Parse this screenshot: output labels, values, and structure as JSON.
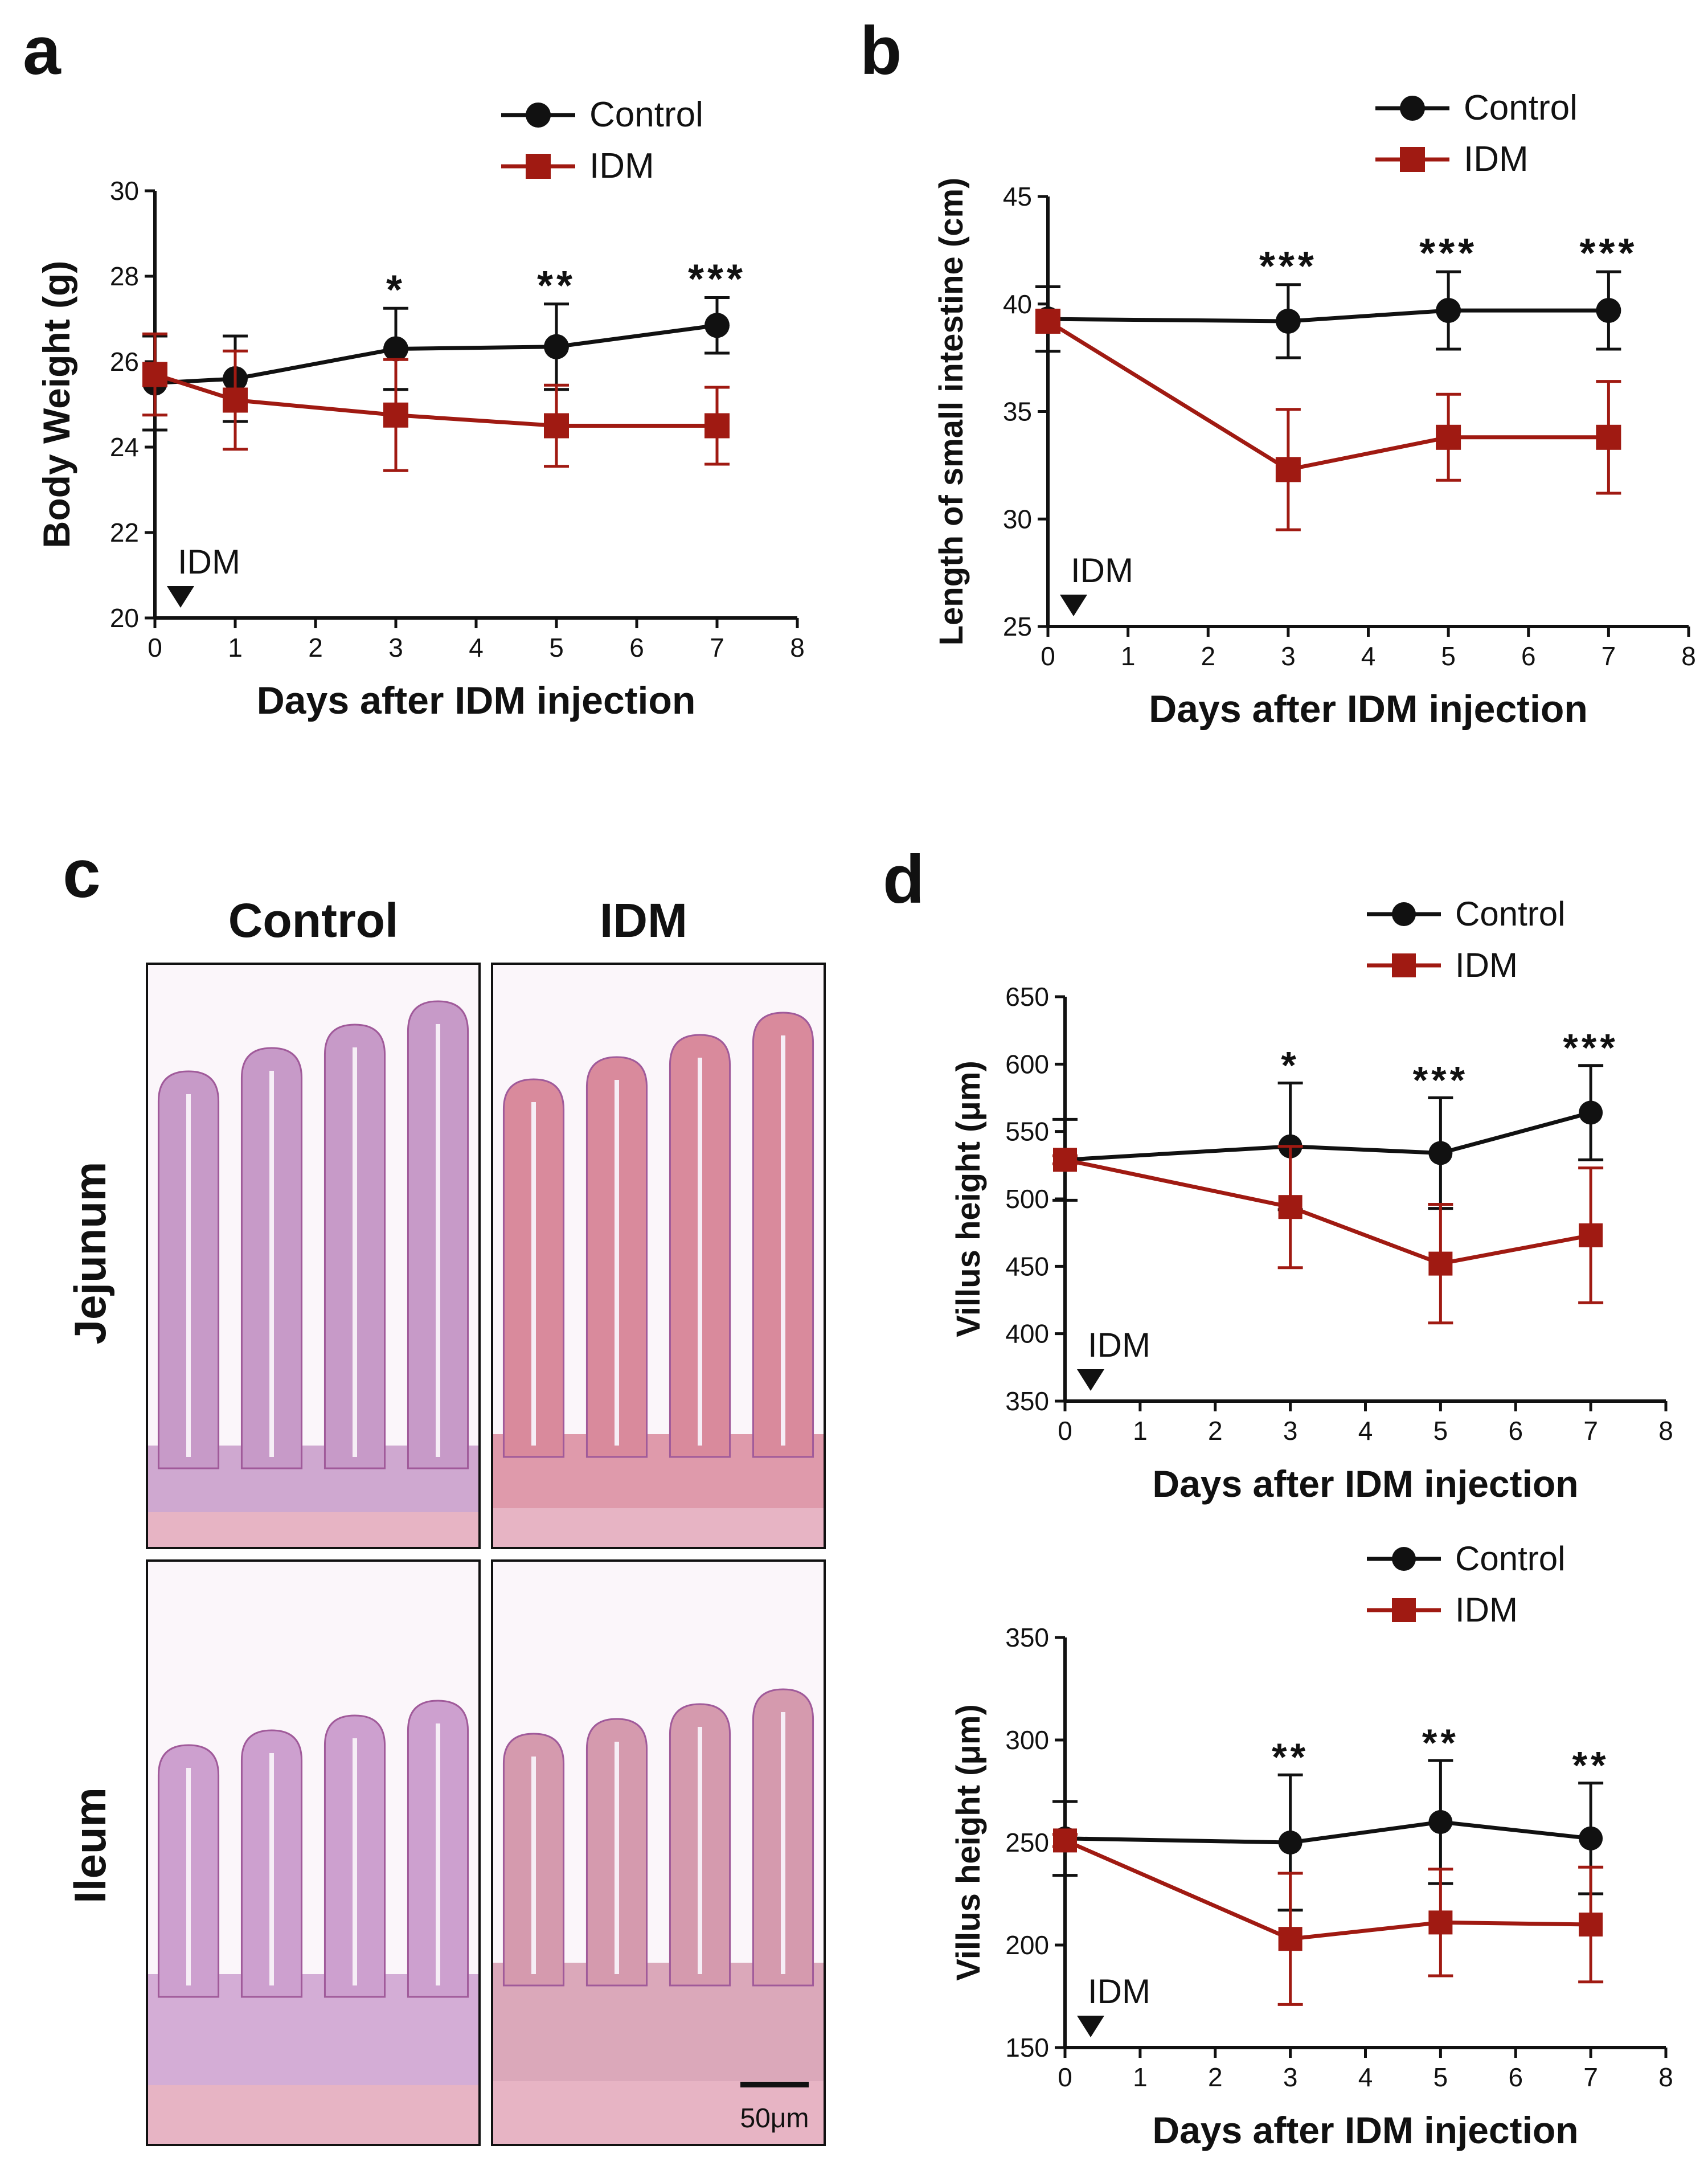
{
  "panels": {
    "a": "a",
    "b": "b",
    "c": "c",
    "d": "d"
  },
  "colors": {
    "control": "#111111",
    "idm": "#a01a12",
    "axis": "#111111"
  },
  "histology": {
    "columns": [
      "Control",
      "IDM"
    ],
    "rows": [
      "Jejunum",
      "Ileum"
    ],
    "scale_bar": "50μm",
    "stain_colors": {
      "control_jejunum": "#c79ac8",
      "idm_jejunum": "#d98a9c",
      "control_ileum": "#cda0cf",
      "idm_ileum": "#d59aae",
      "background": "#fbf6fa"
    }
  },
  "chart_data": [
    {
      "panel": "a",
      "type": "line",
      "title": "",
      "xlabel": "Days after IDM injection",
      "ylabel": "Body Weight (g)",
      "xlim": [
        0,
        8
      ],
      "ylim": [
        20,
        30
      ],
      "xticks": [
        0,
        1,
        2,
        3,
        4,
        5,
        6,
        7,
        8
      ],
      "yticks": [
        20,
        22,
        24,
        26,
        28,
        30
      ],
      "annotation": "IDM",
      "legend": "top-right",
      "series": [
        {
          "name": "Control",
          "x": [
            0,
            1,
            3,
            5,
            7
          ],
          "values": [
            25.5,
            25.6,
            26.3,
            26.35,
            26.85
          ],
          "err": [
            1.1,
            1.0,
            0.95,
            1.0,
            0.65
          ]
        },
        {
          "name": "IDM",
          "x": [
            0,
            1,
            3,
            5,
            7
          ],
          "values": [
            25.7,
            25.1,
            24.75,
            24.5,
            24.5
          ],
          "err": [
            0.95,
            1.15,
            1.3,
            0.95,
            0.9
          ]
        }
      ],
      "significance": [
        {
          "x": 3,
          "label": "*"
        },
        {
          "x": 5,
          "label": "**"
        },
        {
          "x": 7,
          "label": "***"
        }
      ]
    },
    {
      "panel": "b",
      "type": "line",
      "title": "",
      "xlabel": "Days after IDM injection",
      "ylabel": "Length of small intestine (cm)",
      "xlim": [
        0,
        8
      ],
      "ylim": [
        25,
        45
      ],
      "xticks": [
        0,
        1,
        2,
        3,
        4,
        5,
        6,
        7,
        8
      ],
      "yticks": [
        25,
        30,
        35,
        40,
        45
      ],
      "annotation": "IDM",
      "legend": "top-right",
      "series": [
        {
          "name": "Control",
          "x": [
            0,
            3,
            7,
            5
          ],
          "values": [
            39.3,
            39.2,
            39.7,
            39.7
          ],
          "err": [
            1.5,
            1.7,
            1.8,
            1.8
          ]
        },
        {
          "name": "IDM",
          "x": [
            0,
            3,
            5,
            7
          ],
          "values": [
            39.2,
            32.3,
            33.8,
            33.8
          ],
          "err": [
            0.5,
            2.8,
            2.0,
            2.6
          ]
        }
      ],
      "significance": [
        {
          "x": 3,
          "label": "***"
        },
        {
          "x": 5,
          "label": "***"
        },
        {
          "x": 7,
          "label": "***"
        }
      ]
    },
    {
      "panel": "d-top",
      "type": "line",
      "title": "",
      "xlabel": "Days after IDM injection",
      "ylabel": "Villus height (μm)",
      "xlim": [
        0,
        8
      ],
      "ylim": [
        350,
        650
      ],
      "xticks": [
        0,
        1,
        2,
        3,
        4,
        5,
        6,
        7,
        8
      ],
      "yticks": [
        350,
        400,
        450,
        500,
        550,
        600,
        650
      ],
      "annotation": "IDM",
      "legend": "top-right",
      "series": [
        {
          "name": "Control",
          "x": [
            0,
            3,
            5,
            7
          ],
          "values": [
            529,
            539,
            534,
            564
          ],
          "err": [
            30,
            47,
            41,
            35
          ]
        },
        {
          "name": "IDM",
          "x": [
            0,
            3,
            5,
            7
          ],
          "values": [
            529,
            494,
            452,
            473
          ],
          "err": [
            3,
            45,
            44,
            50
          ]
        }
      ],
      "significance": [
        {
          "x": 3,
          "label": "*"
        },
        {
          "x": 5,
          "label": "***"
        },
        {
          "x": 7,
          "label": "***"
        }
      ]
    },
    {
      "panel": "d-bottom",
      "type": "line",
      "title": "",
      "xlabel": "Days after IDM injection",
      "ylabel": "Villus height (μm)",
      "xlim": [
        0,
        8
      ],
      "ylim": [
        150,
        350
      ],
      "xticks": [
        0,
        1,
        2,
        3,
        4,
        5,
        6,
        7,
        8
      ],
      "yticks": [
        150,
        200,
        250,
        300,
        350
      ],
      "annotation": "IDM",
      "legend": "top-right",
      "series": [
        {
          "name": "Control",
          "x": [
            0,
            3,
            5,
            7
          ],
          "values": [
            252,
            250,
            260,
            252
          ],
          "err": [
            18,
            33,
            30,
            27
          ]
        },
        {
          "name": "IDM",
          "x": [
            0,
            3,
            5,
            7
          ],
          "values": [
            251,
            203,
            211,
            210
          ],
          "err": [
            3,
            32,
            26,
            28
          ]
        }
      ],
      "significance": [
        {
          "x": 3,
          "label": "**"
        },
        {
          "x": 5,
          "label": "**"
        },
        {
          "x": 7,
          "label": "**"
        }
      ]
    }
  ]
}
